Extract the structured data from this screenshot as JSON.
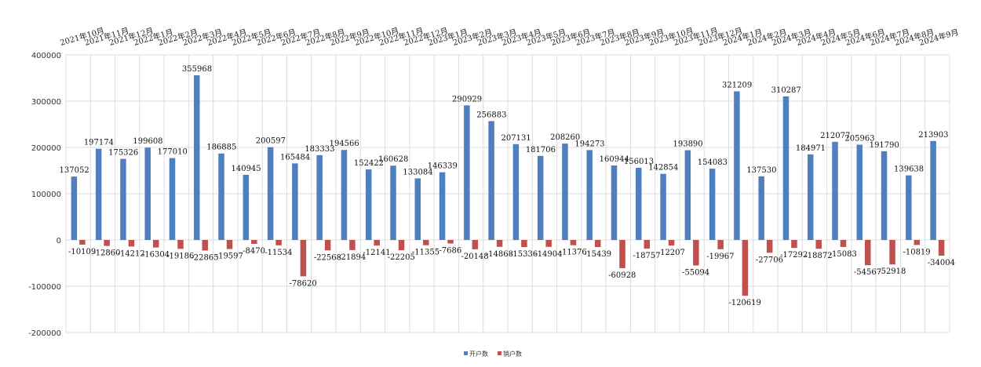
{
  "chart_data": {
    "type": "bar",
    "categories": [
      "2021年10月",
      "2021年11月",
      "2021年12月",
      "2022年1月",
      "2022年2月",
      "2022年3月",
      "2022年4月",
      "2022年5月",
      "2022年6月",
      "2022年7月",
      "2022年8月",
      "2022年9月",
      "2022年10月",
      "2022年11月",
      "2022年12月",
      "2023年1月",
      "2023年2月",
      "2023年3月",
      "2023年4月",
      "2023年5月",
      "2023年6月",
      "2023年7月",
      "2023年8月",
      "2023年9月",
      "2023年10月",
      "2023年11月",
      "2023年12月",
      "2024年1月",
      "2024年2月",
      "2024年3月",
      "2024年4月",
      "2024年5月",
      "2024年6月",
      "2024年7月",
      "2024年8月",
      "2024年9月"
    ],
    "series": [
      {
        "name": "开户数",
        "color": "#4f7fbf",
        "values": [
          137052,
          197174,
          175326,
          199608,
          177010,
          355968,
          186885,
          140945,
          200597,
          165484,
          183333,
          194566,
          152422,
          160628,
          133084,
          146339,
          290929,
          256883,
          207131,
          181706,
          208260,
          194273,
          160944,
          156013,
          142854,
          193890,
          154083,
          321209,
          137530,
          310287,
          184971,
          212077,
          205963,
          191790,
          139638,
          213903
        ]
      },
      {
        "name": "销户数",
        "color": "#c0504d",
        "values": [
          -10109,
          -12860,
          -14212,
          -16304,
          -19186,
          -22865,
          -19597,
          -8470,
          -11534,
          -78620,
          -22568,
          -21894,
          -12141,
          -22205,
          -11355,
          -7686,
          -20148,
          -14868,
          -15336,
          -14904,
          -11376,
          -15439,
          -60928,
          -18757,
          -12207,
          -55094,
          -19967,
          -120619,
          -27706,
          -17292,
          -18872,
          -15083,
          -54567,
          -52918,
          -10819,
          -34004
        ]
      }
    ],
    "ylim": [
      -200000,
      400000
    ],
    "yticks": [
      "400000",
      "300000",
      "200000",
      "100000",
      "0",
      "-100000",
      "-200000"
    ],
    "grid": true,
    "legend": "bottom-center"
  }
}
